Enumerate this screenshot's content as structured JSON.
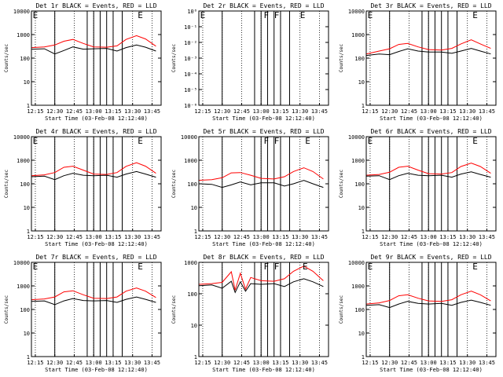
{
  "chart_data": [
    {
      "type": "line",
      "title": "Det 1r BLACK = Events, RED = LLD",
      "xlabel": "Start Time (03-Feb-08 12:12:40)",
      "ylabel": "Counts/sec",
      "x_ticks": [
        "12:15",
        "12:30",
        "12:45",
        "13:00",
        "13:15",
        "13:30",
        "13:45"
      ],
      "y_scale": "log",
      "ylim": [
        1,
        10000
      ],
      "y_ticks": [
        "1",
        "10",
        "100",
        "1000",
        "10000"
      ],
      "markers": [
        {
          "x": "12:13",
          "label": "E"
        },
        {
          "x": "13:34",
          "label": "E"
        }
      ],
      "vertical_lines": [
        "12:55",
        "13:00",
        "13:05",
        "13:10",
        "12:30",
        "13:15",
        "13:22"
      ],
      "series": [
        {
          "color": "#ff0000",
          "x": [
            "12:12",
            "12:22",
            "12:30",
            "12:37",
            "12:44",
            "12:52",
            "13:00",
            "13:10",
            "13:18",
            "13:25",
            "13:33",
            "13:40",
            "13:48"
          ],
          "values": [
            280,
            300,
            360,
            520,
            620,
            420,
            300,
            290,
            330,
            620,
            900,
            650,
            320
          ]
        },
        {
          "color": "#000000",
          "x": [
            "12:12",
            "12:22",
            "12:30",
            "12:37",
            "12:44",
            "12:52",
            "13:00",
            "13:10",
            "13:18",
            "13:25",
            "13:33",
            "13:40",
            "13:48"
          ],
          "values": [
            240,
            250,
            150,
            210,
            300,
            240,
            250,
            260,
            200,
            280,
            360,
            290,
            200
          ]
        }
      ]
    },
    {
      "type": "line",
      "title": "Det 2r BLACK = Events, RED = LLD",
      "xlabel": "Start Time (03-Feb-08 12:12:40)",
      "ylabel": "Counts/sec",
      "x_ticks": [
        "12:15",
        "12:30",
        "12:45",
        "13:00",
        "13:15",
        "13:30",
        "13:45"
      ],
      "y_scale": "log",
      "ylim": [
        1e-06,
        1
      ],
      "y_ticks": [
        "10⁻⁶",
        "10⁻⁵",
        "10⁻⁴",
        "10⁻³",
        "10⁻²",
        "10⁻¹",
        "10⁰"
      ],
      "markers": [
        {
          "x": "12:13",
          "label": "E"
        },
        {
          "x": "13:02",
          "label": "F"
        },
        {
          "x": "13:10",
          "label": "F"
        },
        {
          "x": "13:30",
          "label": "E"
        }
      ],
      "vertical_lines": [
        "12:55",
        "13:00",
        "13:05",
        "13:10",
        "12:30",
        "13:15",
        "13:22"
      ],
      "series": []
    },
    {
      "type": "line",
      "title": "Det 3r BLACK = Events, RED = LLD",
      "xlabel": "Start Time (03-Feb-08 12:12:40)",
      "ylabel": "Counts/sec",
      "x_ticks": [
        "12:15",
        "12:30",
        "12:45",
        "13:00",
        "13:15",
        "13:30",
        "13:45"
      ],
      "y_scale": "log",
      "ylim": [
        1,
        10000
      ],
      "y_ticks": [
        "1",
        "10",
        "100",
        "1000",
        "10000"
      ],
      "markers": [
        {
          "x": "12:13",
          "label": "E"
        },
        {
          "x": "13:34",
          "label": "E"
        }
      ],
      "vertical_lines": [
        "12:55",
        "13:00",
        "13:05",
        "13:10",
        "12:30",
        "13:15",
        "13:22"
      ],
      "series": [
        {
          "color": "#ff0000",
          "x": [
            "12:12",
            "12:22",
            "12:30",
            "12:37",
            "12:44",
            "12:52",
            "13:00",
            "13:10",
            "13:18",
            "13:25",
            "13:33",
            "13:40",
            "13:48"
          ],
          "values": [
            150,
            200,
            250,
            380,
            420,
            300,
            230,
            220,
            260,
            400,
            600,
            400,
            260
          ]
        },
        {
          "color": "#000000",
          "x": [
            "12:12",
            "12:22",
            "12:30",
            "12:37",
            "12:44",
            "12:52",
            "13:00",
            "13:10",
            "13:18",
            "13:25",
            "13:33",
            "13:40",
            "13:48"
          ],
          "values": [
            130,
            150,
            140,
            190,
            250,
            200,
            180,
            180,
            160,
            200,
            260,
            200,
            150
          ]
        }
      ]
    },
    {
      "type": "line",
      "title": "Det 4r BLACK = Events, RED = LLD",
      "xlabel": "Start Time (03-Feb-08 12:12:40)",
      "ylabel": "Counts/sec",
      "x_ticks": [
        "12:15",
        "12:30",
        "12:45",
        "13:00",
        "13:15",
        "13:30",
        "13:45"
      ],
      "y_scale": "log",
      "ylim": [
        1,
        10000
      ],
      "y_ticks": [
        "1",
        "10",
        "100",
        "1000",
        "10000"
      ],
      "markers": [
        {
          "x": "12:13",
          "label": "E"
        },
        {
          "x": "13:34",
          "label": "E"
        }
      ],
      "vertical_lines": [
        "12:55",
        "13:00",
        "13:05",
        "13:10",
        "12:30",
        "13:15",
        "13:22"
      ],
      "series": [
        {
          "color": "#ff0000",
          "x": [
            "12:12",
            "12:22",
            "12:30",
            "12:37",
            "12:44",
            "12:52",
            "13:00",
            "13:10",
            "13:18",
            "13:25",
            "13:33",
            "13:40",
            "13:48"
          ],
          "values": [
            220,
            240,
            300,
            500,
            560,
            380,
            260,
            250,
            300,
            550,
            780,
            560,
            280
          ]
        },
        {
          "color": "#000000",
          "x": [
            "12:12",
            "12:22",
            "12:30",
            "12:37",
            "12:44",
            "12:52",
            "13:00",
            "13:10",
            "13:18",
            "13:25",
            "13:33",
            "13:40",
            "13:48"
          ],
          "values": [
            200,
            210,
            150,
            220,
            280,
            230,
            220,
            230,
            190,
            260,
            330,
            260,
            190
          ]
        }
      ]
    },
    {
      "type": "line",
      "title": "Det 5r BLACK = Events, RED = LLD",
      "xlabel": "Start Time (03-Feb-08 12:12:40)",
      "ylabel": "Counts/sec",
      "x_ticks": [
        "12:15",
        "12:30",
        "12:45",
        "13:00",
        "13:15",
        "13:30",
        "13:45"
      ],
      "y_scale": "log",
      "ylim": [
        1,
        10000
      ],
      "y_ticks": [
        "1",
        "10",
        "100",
        "1000",
        "10000"
      ],
      "markers": [
        {
          "x": "13:02",
          "label": "F"
        },
        {
          "x": "13:10",
          "label": "F"
        },
        {
          "x": "13:34",
          "label": "E"
        }
      ],
      "vertical_lines": [
        "12:55",
        "13:00",
        "13:05",
        "13:10",
        "12:30",
        "13:15",
        "13:22"
      ],
      "series": [
        {
          "color": "#ff0000",
          "x": [
            "12:12",
            "12:22",
            "12:30",
            "12:37",
            "12:44",
            "12:52",
            "13:00",
            "13:10",
            "13:18",
            "13:25",
            "13:33",
            "13:40",
            "13:48"
          ],
          "values": [
            140,
            150,
            180,
            290,
            300,
            230,
            170,
            160,
            200,
            330,
            480,
            330,
            160
          ]
        },
        {
          "color": "#000000",
          "x": [
            "12:12",
            "12:22",
            "12:30",
            "12:37",
            "12:44",
            "12:52",
            "13:00",
            "13:10",
            "13:18",
            "13:25",
            "13:33",
            "13:40",
            "13:48"
          ],
          "values": [
            100,
            95,
            70,
            90,
            120,
            90,
            110,
            110,
            80,
            100,
            140,
            100,
            70
          ]
        }
      ]
    },
    {
      "type": "line",
      "title": "Det 6r BLACK = Events, RED = LLD",
      "xlabel": "Start Time (03-Feb-08 12:12:40)",
      "ylabel": "Counts/sec",
      "x_ticks": [
        "12:15",
        "12:30",
        "12:45",
        "13:00",
        "13:15",
        "13:30",
        "13:45"
      ],
      "y_scale": "log",
      "ylim": [
        1,
        10000
      ],
      "y_ticks": [
        "1",
        "10",
        "100",
        "1000",
        "10000"
      ],
      "markers": [
        {
          "x": "12:13",
          "label": "E"
        },
        {
          "x": "13:34",
          "label": "E"
        }
      ],
      "vertical_lines": [
        "12:55",
        "13:00",
        "13:05",
        "13:10",
        "12:30",
        "13:15",
        "13:22"
      ],
      "series": [
        {
          "color": "#ff0000",
          "x": [
            "12:12",
            "12:22",
            "12:30",
            "12:37",
            "12:44",
            "12:52",
            "13:00",
            "13:10",
            "13:18",
            "13:25",
            "13:33",
            "13:40",
            "13:48"
          ],
          "values": [
            230,
            250,
            310,
            500,
            560,
            380,
            270,
            260,
            300,
            540,
            760,
            540,
            280
          ]
        },
        {
          "color": "#000000",
          "x": [
            "12:12",
            "12:22",
            "12:30",
            "12:37",
            "12:44",
            "12:52",
            "13:00",
            "13:10",
            "13:18",
            "13:25",
            "13:33",
            "13:40",
            "13:48"
          ],
          "values": [
            210,
            220,
            150,
            220,
            280,
            230,
            220,
            230,
            190,
            260,
            320,
            250,
            190
          ]
        }
      ]
    },
    {
      "type": "line",
      "title": "Det 7r BLACK = Events, RED = LLD",
      "xlabel": "Start Time (03-Feb-08 12:12:40)",
      "ylabel": "Counts/sec",
      "x_ticks": [
        "12:15",
        "12:30",
        "12:45",
        "13:00",
        "13:15",
        "13:30",
        "13:45"
      ],
      "y_scale": "log",
      "ylim": [
        1,
        10000
      ],
      "y_ticks": [
        "1",
        "10",
        "100",
        "1000",
        "10000"
      ],
      "markers": [
        {
          "x": "12:13",
          "label": "E"
        },
        {
          "x": "13:34",
          "label": "E"
        }
      ],
      "vertical_lines": [
        "12:55",
        "13:00",
        "13:05",
        "13:10",
        "12:30",
        "13:15",
        "13:22"
      ],
      "series": [
        {
          "color": "#ff0000",
          "x": [
            "12:12",
            "12:22",
            "12:30",
            "12:37",
            "12:44",
            "12:52",
            "13:00",
            "13:10",
            "13:18",
            "13:25",
            "13:33",
            "13:40",
            "13:48"
          ],
          "values": [
            260,
            280,
            340,
            560,
            620,
            420,
            300,
            290,
            340,
            600,
            820,
            600,
            320
          ]
        },
        {
          "color": "#000000",
          "x": [
            "12:12",
            "12:22",
            "12:30",
            "12:37",
            "12:44",
            "12:52",
            "13:00",
            "13:10",
            "13:18",
            "13:25",
            "13:33",
            "13:40",
            "13:48"
          ],
          "values": [
            220,
            230,
            160,
            230,
            290,
            240,
            230,
            240,
            200,
            270,
            340,
            270,
            200
          ]
        }
      ]
    },
    {
      "type": "line",
      "title": "Det 8r BLACK = Events, RED = LLD",
      "xlabel": "Start Time (03-Feb-08 12:12:40)",
      "ylabel": "Counts/sec",
      "x_ticks": [
        "12:15",
        "12:30",
        "12:45",
        "13:00",
        "13:15",
        "13:30",
        "13:45"
      ],
      "y_scale": "log",
      "ylim": [
        1,
        1000
      ],
      "y_ticks": [
        "1",
        "10",
        "100",
        "1000"
      ],
      "markers": [
        {
          "x": "13:02",
          "label": "F"
        },
        {
          "x": "13:10",
          "label": "F"
        },
        {
          "x": "13:32",
          "label": "E"
        }
      ],
      "vertical_lines": [
        "12:55",
        "13:00",
        "13:05",
        "13:10",
        "12:30",
        "13:15",
        "13:22"
      ],
      "series": [
        {
          "color": "#ff0000",
          "x": [
            "12:12",
            "12:22",
            "12:30",
            "12:37",
            "12:40",
            "12:44",
            "12:48",
            "12:52",
            "13:00",
            "13:10",
            "13:18",
            "13:25",
            "13:33",
            "13:40",
            "13:48"
          ],
          "values": [
            200,
            210,
            230,
            500,
            130,
            450,
            140,
            330,
            260,
            250,
            300,
            520,
            760,
            520,
            260
          ]
        },
        {
          "color": "#000000",
          "x": [
            "12:12",
            "12:22",
            "12:30",
            "12:37",
            "12:40",
            "12:44",
            "12:48",
            "12:52",
            "13:00",
            "13:10",
            "13:18",
            "13:25",
            "13:33",
            "13:40",
            "13:48"
          ],
          "values": [
            180,
            190,
            150,
            250,
            110,
            240,
            120,
            210,
            200,
            210,
            170,
            240,
            300,
            240,
            170
          ]
        }
      ]
    },
    {
      "type": "line",
      "title": "Det 9r BLACK = Events, RED = LLD",
      "xlabel": "Start Time (03-Feb-08 12:12:40)",
      "ylabel": "Counts/sec",
      "x_ticks": [
        "12:15",
        "12:30",
        "12:45",
        "13:00",
        "13:15",
        "13:30",
        "13:45"
      ],
      "y_scale": "log",
      "ylim": [
        1,
        10000
      ],
      "y_ticks": [
        "1",
        "10",
        "100",
        "1000",
        "10000"
      ],
      "markers": [
        {
          "x": "12:13",
          "label": "E"
        },
        {
          "x": "13:34",
          "label": "E"
        }
      ],
      "vertical_lines": [
        "12:55",
        "13:00",
        "13:05",
        "13:10",
        "12:30",
        "13:15",
        "13:22"
      ],
      "series": [
        {
          "color": "#ff0000",
          "x": [
            "12:12",
            "12:22",
            "12:30",
            "12:37",
            "12:44",
            "12:52",
            "13:00",
            "13:10",
            "13:18",
            "13:25",
            "13:33",
            "13:40",
            "13:48"
          ],
          "values": [
            170,
            190,
            240,
            380,
            420,
            300,
            230,
            220,
            260,
            420,
            600,
            420,
            230
          ]
        },
        {
          "color": "#000000",
          "x": [
            "12:12",
            "12:22",
            "12:30",
            "12:37",
            "12:44",
            "12:52",
            "13:00",
            "13:10",
            "13:18",
            "13:25",
            "13:33",
            "13:40",
            "13:48"
          ],
          "values": [
            150,
            160,
            120,
            170,
            220,
            180,
            170,
            180,
            150,
            200,
            250,
            200,
            150
          ]
        }
      ]
    }
  ]
}
